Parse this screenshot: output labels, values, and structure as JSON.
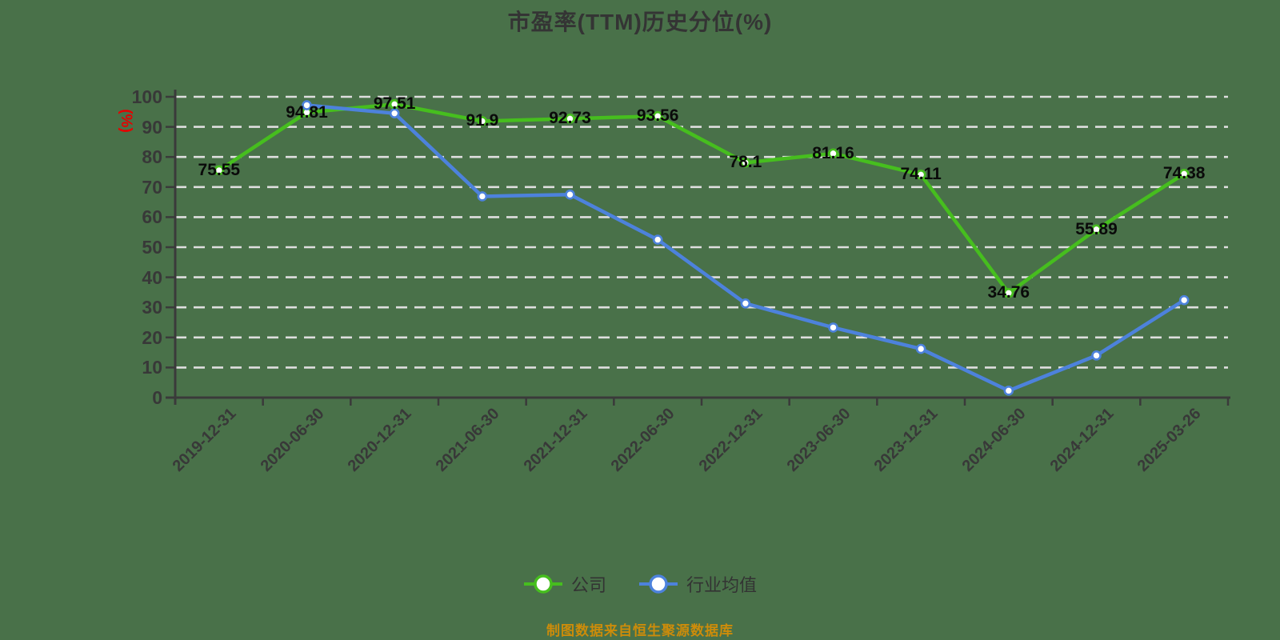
{
  "title": "市盈率(TTM)历史分位(%)",
  "y_axis_label": "(%)",
  "footer": "制图数据来自恒生聚源数据库",
  "colors": {
    "background": "#497149",
    "axis": "#3a3a3a",
    "gridline": "#dedede",
    "tick_label": "#383838",
    "data_label": "#0a0a0a",
    "title_color": "#343434",
    "y_unit": "#e60000",
    "footer_color": "#cd8c0a",
    "legend_text": "#333333",
    "company_green": "#46be1e",
    "industry_blue": "#4d82dc"
  },
  "chart_data": {
    "type": "line",
    "title": "市盈率(TTM)历史分位(%)",
    "xlabel": "",
    "ylabel": "(%)",
    "ylim": [
      0,
      100
    ],
    "yticks": [
      0,
      10,
      20,
      30,
      40,
      50,
      60,
      70,
      80,
      90,
      100
    ],
    "grid": "horizontal-dashed",
    "legend_position": "bottom",
    "categories": [
      "2019-12-31",
      "2020-06-30",
      "2020-12-31",
      "2021-06-30",
      "2021-12-31",
      "2022-06-30",
      "2022-12-31",
      "2023-06-30",
      "2023-12-31",
      "2024-06-30",
      "2024-12-31",
      "2025-03-26"
    ],
    "series": [
      {
        "name": "公司",
        "color": "#46be1e",
        "show_labels": true,
        "values": [
          75.55,
          94.81,
          97.51,
          91.9,
          92.73,
          93.56,
          78.1,
          81.16,
          74.11,
          34.76,
          55.89,
          74.38
        ]
      },
      {
        "name": "行业均值",
        "color": "#4d82dc",
        "show_labels": false,
        "values": [
          null,
          97.2,
          94.5,
          66.9,
          67.5,
          52.5,
          31.3,
          23.3,
          16.2,
          2.3,
          14,
          32.4
        ]
      }
    ]
  }
}
